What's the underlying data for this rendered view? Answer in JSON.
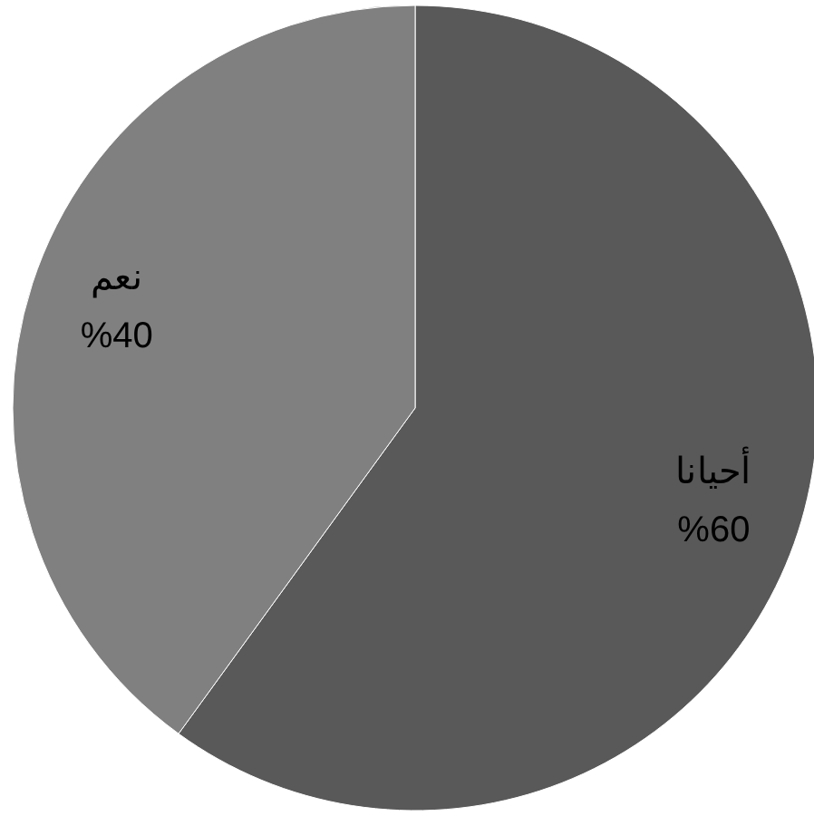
{
  "chart_data": {
    "type": "pie",
    "categories": [
      "أحيانا",
      "نعم"
    ],
    "values": [
      60,
      40
    ],
    "colors": [
      "#595959",
      "#808080"
    ],
    "value_labels": [
      "%60",
      "%40"
    ]
  }
}
